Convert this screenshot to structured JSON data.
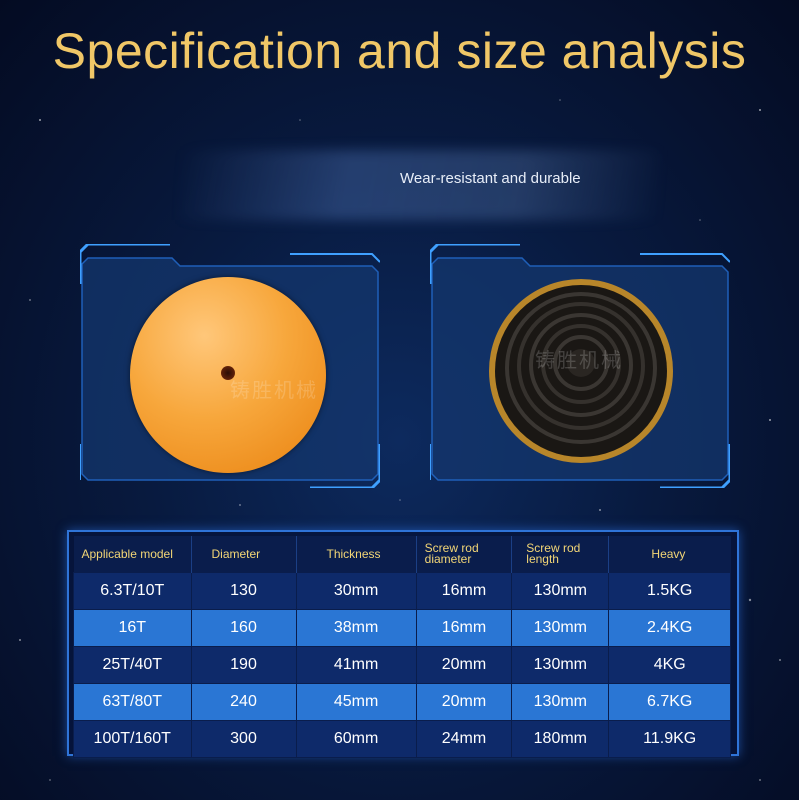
{
  "title": "Specification and size analysis",
  "subtitle": "Wear-resistant and durable",
  "watermark": "铸胜机械",
  "table": {
    "headers": [
      "Applicable model",
      "Diameter",
      "Thickness",
      "Screw rod diameter",
      "Screw rod length",
      "Heavy"
    ],
    "header_lines": {
      "screw_rod_diameter": [
        "Screw rod",
        "diameter"
      ],
      "screw_rod_length": [
        "Screw rod",
        "length"
      ]
    },
    "rows": [
      {
        "model": "6.3T/10T",
        "diameter": "130",
        "thickness": "30mm",
        "rod_diameter": "16mm",
        "rod_length": "130mm",
        "weight": "1.5KG"
      },
      {
        "model": "16T",
        "diameter": "160",
        "thickness": "38mm",
        "rod_diameter": "16mm",
        "rod_length": "130mm",
        "weight": "2.4KG"
      },
      {
        "model": "25T/40T",
        "diameter": "190",
        "thickness": "41mm",
        "rod_diameter": "20mm",
        "rod_length": "130mm",
        "weight": "4KG"
      },
      {
        "model": "63T/80T",
        "diameter": "240",
        "thickness": "45mm",
        "rod_diameter": "20mm",
        "rod_length": "130mm",
        "weight": "6.7KG"
      },
      {
        "model": "100T/160T",
        "diameter": "300",
        "thickness": "60mm",
        "rod_diameter": "24mm",
        "rod_length": "180mm",
        "weight": "11.9KG"
      }
    ]
  },
  "colors": {
    "title": "#f0c767",
    "header_text": "#f3d676",
    "frame": "#2f74d8",
    "row_dark": "#0e2a6a",
    "row_light": "#2a76d4"
  }
}
